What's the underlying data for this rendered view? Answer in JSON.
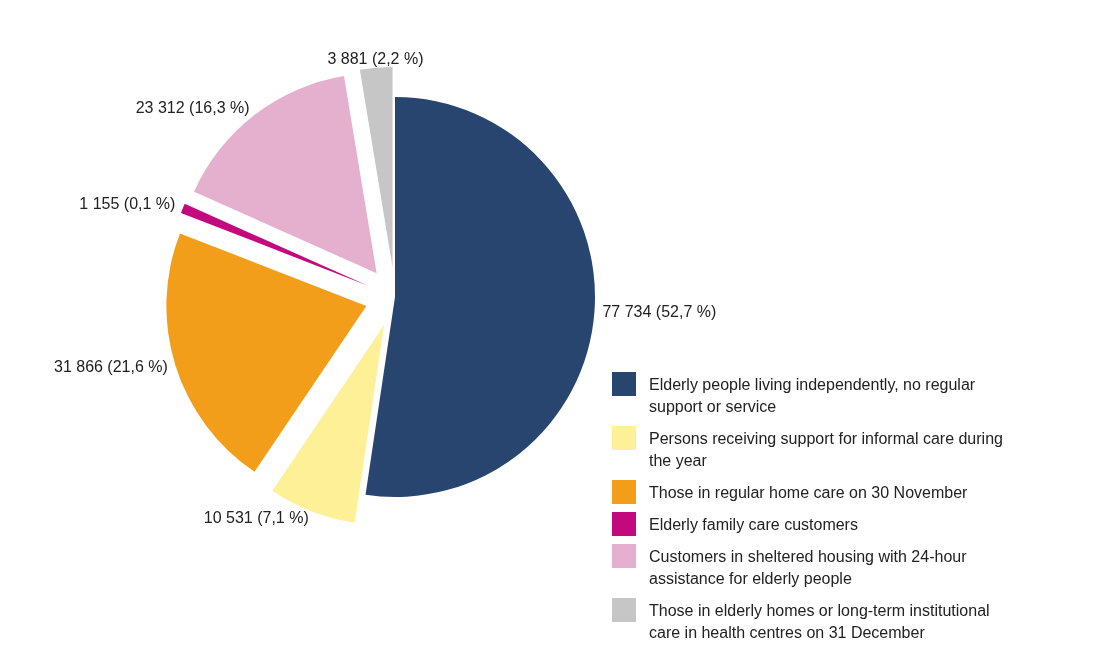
{
  "chart_data": {
    "type": "pie",
    "categories": [
      "Elderly people living independently, no regular support or service",
      "Persons receiving support for informal care during the year",
      "Those in regular home care on 30 November",
      "Elderly family care customers",
      "Customers in sheltered housing with 24-hour assistance for elderly people",
      "Those in elderly homes or long-term institutional care in health centres on 31 December"
    ],
    "values": [
      77734,
      10531,
      31866,
      1155,
      23312,
      3881
    ],
    "colors": [
      "#284570",
      "#fdf096",
      "#f39e1a",
      "#c20a7e",
      "#e4b0ce",
      "#c6c6c6"
    ],
    "value_labels": [
      "77 734 (52,7 %)",
      "10 531 (7,1 %)",
      "31 866 (21,6 %)",
      "1 155 (0,1 %)",
      "23 312 (16,3 %)",
      "3 881 (2,2 %)"
    ],
    "legend": "bottom right"
  }
}
